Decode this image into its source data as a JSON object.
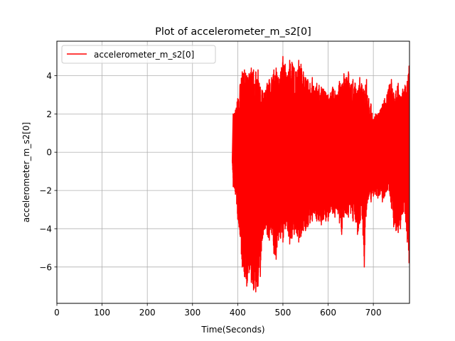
{
  "chart_data": {
    "type": "line",
    "title": "Plot of accelerometer_m_s2[0]",
    "xlabel": "Time(Seconds)",
    "ylabel": "accelerometer_m_s2[0]",
    "xlim": [
      0,
      780
    ],
    "ylim": [
      -7.9,
      5.8
    ],
    "x_ticks": [
      0,
      100,
      200,
      300,
      400,
      500,
      600,
      700
    ],
    "y_ticks": [
      -6,
      -4,
      -2,
      0,
      2,
      4
    ],
    "grid": true,
    "legend_position": "top-left",
    "series": [
      {
        "name": "accelerometer_m_s2[0]",
        "color": "#ff0000",
        "x": [
          388,
          390,
          395,
          400,
          405,
          410,
          415,
          420,
          425,
          430,
          435,
          440,
          445,
          450,
          455,
          460,
          465,
          470,
          475,
          480,
          485,
          490,
          495,
          500,
          505,
          510,
          515,
          520,
          525,
          530,
          535,
          540,
          545,
          550,
          555,
          560,
          565,
          570,
          575,
          580,
          585,
          590,
          595,
          600,
          605,
          610,
          615,
          620,
          625,
          630,
          635,
          640,
          645,
          650,
          655,
          660,
          665,
          670,
          675,
          680,
          685,
          690,
          695,
          700,
          705,
          710,
          715,
          720,
          725,
          730,
          735,
          740,
          745,
          750,
          755,
          760,
          765,
          770,
          775,
          779
        ],
        "y_max": [
          -0.4,
          2.0,
          2.2,
          2.8,
          3.5,
          4.2,
          4.3,
          4.0,
          4.1,
          4.4,
          4.3,
          4.2,
          4.3,
          3.4,
          3.2,
          3.1,
          3.6,
          3.8,
          3.9,
          4.3,
          4.4,
          3.9,
          4.2,
          5.0,
          4.6,
          4.0,
          4.8,
          4.7,
          4.4,
          4.2,
          4.8,
          4.6,
          4.2,
          3.9,
          3.8,
          3.6,
          3.9,
          3.2,
          3.6,
          3.5,
          3.4,
          3.3,
          3.1,
          3.0,
          3.1,
          3.4,
          3.2,
          3.0,
          3.7,
          3.5,
          4.1,
          3.9,
          4.2,
          3.5,
          3.8,
          3.6,
          3.2,
          3.9,
          3.5,
          3.2,
          3.8,
          2.8,
          2.5,
          1.7,
          2.0,
          2.0,
          2.2,
          2.5,
          2.8,
          3.0,
          3.5,
          3.8,
          3.1,
          3.2,
          3.6,
          2.9,
          3.3,
          3.5,
          3.7,
          4.5
        ],
        "y_min": [
          -0.5,
          -1.8,
          -2.2,
          -3.5,
          -4.3,
          -6.0,
          -6.5,
          -7.0,
          -6.3,
          -6.8,
          -7.2,
          -7.3,
          -7.0,
          -6.5,
          -4.5,
          -4.0,
          -4.3,
          -4.6,
          -4.2,
          -5.3,
          -5.6,
          -4.6,
          -4.5,
          -4.7,
          -4.0,
          -4.0,
          -4.8,
          -4.5,
          -4.3,
          -4.2,
          -4.7,
          -4.4,
          -4.1,
          -4.1,
          -3.9,
          -3.7,
          -3.6,
          -3.2,
          -3.6,
          -3.6,
          -3.8,
          -3.5,
          -3.6,
          -3.6,
          -3.1,
          -3.2,
          -3.4,
          -3.0,
          -3.7,
          -4.3,
          -3.4,
          -3.2,
          -3.4,
          -3.2,
          -3.6,
          -3.5,
          -4.3,
          -3.7,
          -3.3,
          -6.0,
          -3.0,
          -2.3,
          -2.6,
          -2.3,
          -2.2,
          -2.4,
          -2.2,
          -2.6,
          -2.3,
          -2.0,
          -2.0,
          -2.9,
          -3.9,
          -4.1,
          -4.2,
          -4.0,
          -3.2,
          -3.2,
          -4.7,
          -5.8
        ]
      }
    ]
  }
}
